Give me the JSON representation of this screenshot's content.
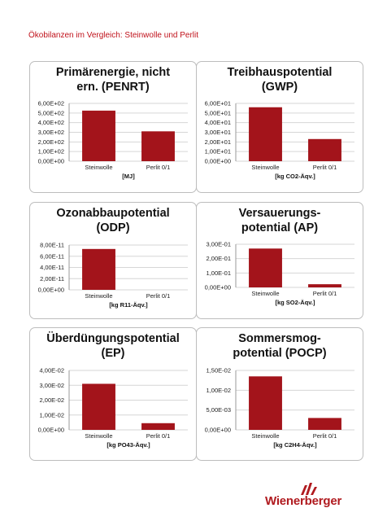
{
  "page": {
    "title": "Ökobilanzen im Vergleich: Steinwolle und Perlit"
  },
  "brand": {
    "name": "Wienerberger"
  },
  "colors": {
    "bar": "#a3141b",
    "bar_highlight": "#c8252c",
    "grid": "#d6d6d6",
    "accent_text": "#c0121b"
  },
  "chart_data": [
    {
      "type": "bar",
      "title": "Primärenergie, nicht\nern. (PENRT)",
      "categories": [
        "Steinwolle",
        "Perlit 0/1"
      ],
      "values": [
        525,
        310
      ],
      "ylim": [
        0,
        600
      ],
      "yticks": [
        0,
        100,
        200,
        300,
        400,
        500,
        600
      ],
      "ytick_labels": [
        "0,00E+00",
        "1,00E+02",
        "2,00E+02",
        "3,00E+02",
        "4,00E+02",
        "5,00E+02",
        "6,00E+02"
      ],
      "xlabel": "[MJ]"
    },
    {
      "type": "bar",
      "title": "Treibhauspotential\n(GWP)",
      "categories": [
        "Steinwolle",
        "Perlit 0/1"
      ],
      "values": [
        56,
        23
      ],
      "ylim": [
        0,
        60
      ],
      "yticks": [
        0,
        10,
        20,
        30,
        40,
        50,
        60
      ],
      "ytick_labels": [
        "0,00E+00",
        "1,00E+01",
        "2,00E+01",
        "3,00E+01",
        "4,00E+01",
        "5,00E+01",
        "6,00E+01"
      ],
      "xlabel": "[kg CO2-Äqv.]"
    },
    {
      "type": "bar",
      "title": "Ozonabbaupotential\n(ODP)",
      "categories": [
        "Steinwolle",
        "Perlit 0/1"
      ],
      "values": [
        7.3e-11,
        0
      ],
      "ylim": [
        0,
        8e-11
      ],
      "yticks": [
        0,
        2e-11,
        4e-11,
        6e-11,
        8e-11
      ],
      "ytick_labels": [
        "0,00E+00",
        "2,00E-11",
        "4,00E-11",
        "6,00E-11",
        "8,00E-11"
      ],
      "xlabel": "[kg R11-Äqv.]"
    },
    {
      "type": "bar",
      "title": "Versauerungs-\npotential (AP)",
      "categories": [
        "Steinwolle",
        "Perlit 0/1"
      ],
      "values": [
        0.27,
        0.022
      ],
      "ylim": [
        0,
        0.3
      ],
      "yticks": [
        0,
        0.1,
        0.2,
        0.3
      ],
      "ytick_labels": [
        "0,00E+00",
        "1,00E-01",
        "2,00E-01",
        "3,00E-01"
      ],
      "xlabel": "[kg SO2-Äqv.]"
    },
    {
      "type": "bar",
      "title": "Überdüngungspotential\n(EP)",
      "categories": [
        "Steinwolle",
        "Perlit 0/1"
      ],
      "values": [
        0.031,
        0.0045
      ],
      "ylim": [
        0,
        0.04
      ],
      "yticks": [
        0,
        0.01,
        0.02,
        0.03,
        0.04
      ],
      "ytick_labels": [
        "0,00E+00",
        "1,00E-02",
        "2,00E-02",
        "3,00E-02",
        "4,00E-02"
      ],
      "xlabel": "[kg PO43-Äqv.]"
    },
    {
      "type": "bar",
      "title": "Sommersmog-\npotential (POCP)",
      "categories": [
        "Steinwolle",
        "Perlit 0/1"
      ],
      "values": [
        0.0135,
        0.003
      ],
      "ylim": [
        0,
        0.015
      ],
      "yticks": [
        0,
        0.005,
        0.01,
        0.015
      ],
      "ytick_labels": [
        "0,00E+00",
        "5,00E-03",
        "1,00E-02",
        "1,50E-02"
      ],
      "xlabel": "[kg C2H4-Äqv.]"
    }
  ]
}
